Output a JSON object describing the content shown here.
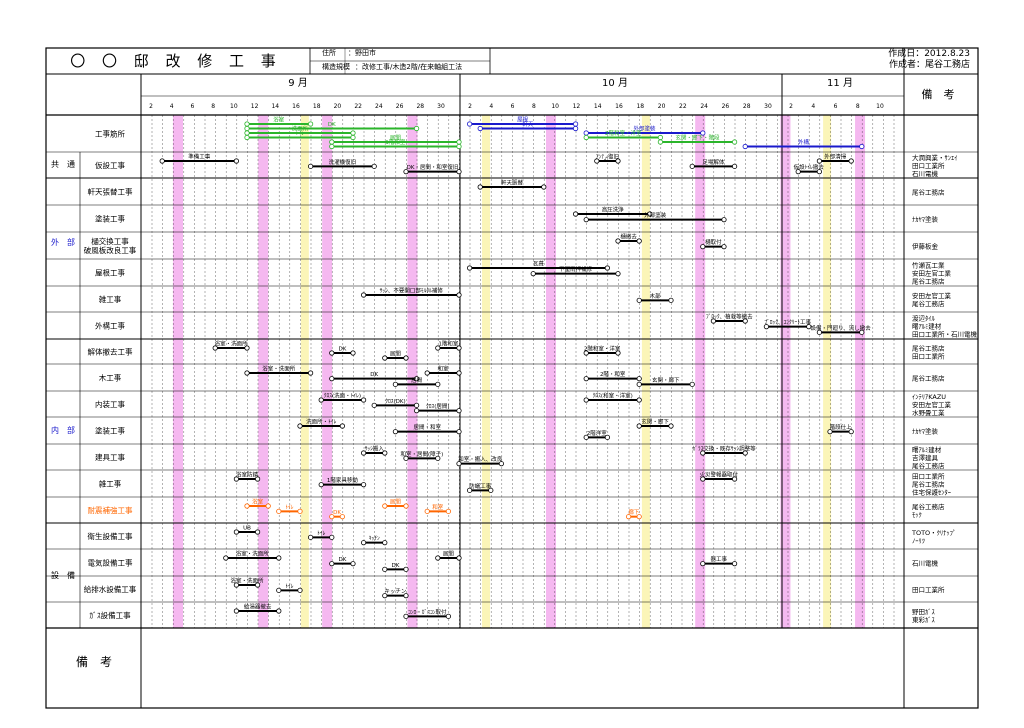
{
  "header": {
    "title": "〇 〇 邸 改 修 工 事",
    "address_label": "住所",
    "address_value": "：野田市",
    "structure_label": "構造規模",
    "structure_value": "：改修工事/木造2階/在来軸組工法",
    "created_date": "作成日：2012.8.23",
    "author": "作成者：尾谷工務店"
  },
  "months": [
    {
      "label": "9 月"
    },
    {
      "label": "10 月"
    },
    {
      "label": "11 月"
    }
  ],
  "day_ticks": [
    [
      "2",
      "4",
      "6",
      "8",
      "10",
      "12",
      "14",
      "16",
      "18",
      "20",
      "22",
      "24",
      "26",
      "28",
      "30"
    ],
    [
      "2",
      "4",
      "6",
      "8",
      "10",
      "12",
      "14",
      "16",
      "18",
      "20",
      "22",
      "24",
      "26",
      "28",
      "30"
    ],
    [
      "2",
      "4",
      "6",
      "8",
      "10"
    ]
  ],
  "remarks_header": "備　考",
  "group_labels": {
    "common": "共　通",
    "exterior": "外　部",
    "interior": "内　部",
    "equipment": "設　備"
  },
  "rows": [
    {
      "label": "工事筋所",
      "contractor": ""
    },
    {
      "label": "仮設工事",
      "contractor": "大潤興業・ｻﾝｴｲ\n田口工業所\n石川電機"
    },
    {
      "label": "軒天張替工事",
      "contractor": "尾谷工務店"
    },
    {
      "label": "塗装工事",
      "contractor": "ﾅｶﾔﾏ塗装"
    },
    {
      "label": "樋交換工事\n破風板改良工事",
      "contractor": "伊藤板金"
    },
    {
      "label": "屋根工事",
      "contractor": "竹瀬瓦工業\n安田左官工業\n尾谷工務店"
    },
    {
      "label": "雑工事",
      "contractor": "安田左官工業\n尾谷工務店"
    },
    {
      "label": "外構工事",
      "contractor": "渡辺ﾀｲﾙ\n曙ｱﾙﾐ建材\n田口工業所・石川電機"
    },
    {
      "label": "解体撤去工事",
      "contractor": "尾谷工務店\n田口工業所"
    },
    {
      "label": "木工事",
      "contractor": "尾谷工務店"
    },
    {
      "label": "内装工事",
      "contractor": "ｲﾝﾃﾘｱKAZU\n安田左官工業\n水野畳工業"
    },
    {
      "label": "塗装工事",
      "contractor": "ﾅｶﾔﾏ塗装"
    },
    {
      "label": "建具工事",
      "contractor": "曙ｱﾙﾐ建材\n吉澤建具\n尾谷工務店"
    },
    {
      "label": "雑工事",
      "contractor": "田口工業所\n尾谷工務店\n住宅保護ｾﾝﾀｰ"
    },
    {
      "label": "耐震補強工事",
      "contractor": "尾谷工務店\nﾓｯｸ"
    },
    {
      "label": "衛生設備工事",
      "contractor": "TOTO・ｸﾘﾅｯﾌﾟ\nﾉｰﾘﾂ"
    },
    {
      "label": "電気設備工事",
      "contractor": "石川電機"
    },
    {
      "label": "給排水設備工事",
      "contractor": "田口工業所"
    },
    {
      "label": "ｶﾞｽ設備工事",
      "contractor": "野田ｶﾞｽ\n東彩ｶﾞｽ"
    }
  ],
  "bottom_remarks_label": "備　考",
  "tasks": [
    {
      "row": 0,
      "start": 10,
      "end": 16,
      "color": "#2bb52b",
      "label": "浴室"
    },
    {
      "row": 0,
      "start": 10,
      "end": 26,
      "color": "#2bb52b",
      "label": "DK"
    },
    {
      "row": 0,
      "start": 10,
      "end": 20,
      "color": "#2bb52b",
      "label": "洗面所"
    },
    {
      "row": 0,
      "start": 10,
      "end": 20,
      "color": "#2bb52b",
      "label": "ﾄｲﾚ"
    },
    {
      "row": 0,
      "start": 18,
      "end": 30,
      "color": "#2bb52b",
      "label": "居間"
    },
    {
      "row": 0,
      "start": 18,
      "end": 30,
      "color": "#2bb52b",
      "label": "1階和室"
    },
    {
      "row": 0,
      "start": 31,
      "end": 41,
      "color": "#1a1acc",
      "label": "屋根"
    },
    {
      "row": 0,
      "start": 32,
      "end": 41,
      "color": "#1a1acc",
      "label": "軒天"
    },
    {
      "row": 0,
      "start": 42,
      "end": 53,
      "color": "#1a1acc",
      "label": "外部塗装"
    },
    {
      "row": 0,
      "start": 42,
      "end": 49,
      "color": "#2bb52b",
      "label": "2階和室・洋室"
    },
    {
      "row": 0,
      "start": 49,
      "end": 56,
      "color": "#2bb52b",
      "label": "玄関・廊下・階段"
    },
    {
      "row": 0,
      "start": 57,
      "end": 68,
      "color": "#1a1acc",
      "label": "外構"
    },
    {
      "row": 1,
      "start": 2,
      "end": 9,
      "color": "#000",
      "label": "準備工事"
    },
    {
      "row": 1,
      "start": 16,
      "end": 22,
      "color": "#000",
      "label": "洗濯機復旧"
    },
    {
      "row": 1,
      "start": 25,
      "end": 30,
      "color": "#000",
      "label": "DK・居間・和室復旧"
    },
    {
      "row": 1,
      "start": 43,
      "end": 45,
      "color": "#000",
      "label": "ｱﾝﾃﲊ復旧"
    },
    {
      "row": 1,
      "start": 52,
      "end": 56,
      "color": "#000",
      "label": "足場解体"
    },
    {
      "row": 1,
      "start": 62,
      "end": 64,
      "color": "#000",
      "label": "仮設ﾄｲﾚ撤去"
    },
    {
      "row": 1,
      "start": 64,
      "end": 67,
      "color": "#000",
      "label": "外部清掃"
    },
    {
      "row": 2,
      "start": 32,
      "end": 38,
      "color": "#000",
      "label": "軒天張替"
    },
    {
      "row": 3,
      "start": 41,
      "end": 48,
      "color": "#000",
      "label": "高圧洗浄"
    },
    {
      "row": 3,
      "start": 42,
      "end": 55,
      "color": "#000",
      "label": "外部塗装"
    },
    {
      "row": 4,
      "start": 45,
      "end": 47,
      "color": "#000",
      "label": "樋撤去"
    },
    {
      "row": 4,
      "start": 53,
      "end": 55,
      "color": "#000",
      "label": "樋取付"
    },
    {
      "row": 5,
      "start": 31,
      "end": 44,
      "color": "#000",
      "label": "瓦葺"
    },
    {
      "row": 5,
      "start": 37,
      "end": 45,
      "color": "#000",
      "label": "下屋雨押補修"
    },
    {
      "row": 6,
      "start": 21,
      "end": 30,
      "color": "#000",
      "label": "ｻｯｼ、不要開口部ﾓﾙﾀﾙ補修"
    },
    {
      "row": 6,
      "start": 47,
      "end": 50,
      "color": "#000",
      "label": "木部"
    },
    {
      "row": 7,
      "start": 54,
      "end": 57,
      "color": "#000",
      "label": "ﾌﾞﾛｯｸ、植栽等撤去"
    },
    {
      "row": 7,
      "start": 59,
      "end": 63,
      "color": "#000",
      "label": "ﾌﾞﾛｯｸ、ｺﾝｸﾘｰﾄ工事"
    },
    {
      "row": 7,
      "start": 64,
      "end": 68,
      "color": "#000",
      "label": "設備・門廻り、流し撤去"
    },
    {
      "row": 8,
      "start": 7,
      "end": 10,
      "color": "#000",
      "label": "浴室・洗面所"
    },
    {
      "row": 8,
      "start": 18,
      "end": 20,
      "color": "#000",
      "label": "DK"
    },
    {
      "row": 8,
      "start": 23,
      "end": 25,
      "color": "#000",
      "label": "居間"
    },
    {
      "row": 8,
      "start": 28,
      "end": 30,
      "color": "#000",
      "label": "1階和室"
    },
    {
      "row": 8,
      "start": 42,
      "end": 45,
      "color": "#000",
      "label": "2階和室・洋室"
    },
    {
      "row": 9,
      "start": 10,
      "end": 16,
      "color": "#000",
      "label": "浴室・洗面所"
    },
    {
      "row": 9,
      "start": 18,
      "end": 26,
      "color": "#000",
      "label": "DK"
    },
    {
      "row": 9,
      "start": 24,
      "end": 28,
      "color": "#000",
      "label": "居間"
    },
    {
      "row": 9,
      "start": 27,
      "end": 30,
      "color": "#000",
      "label": "和室"
    },
    {
      "row": 9,
      "start": 42,
      "end": 47,
      "color": "#000",
      "label": "2階・和室"
    },
    {
      "row": 9,
      "start": 47,
      "end": 52,
      "color": "#000",
      "label": "玄関・廊下"
    },
    {
      "row": 10,
      "start": 17,
      "end": 21,
      "color": "#000",
      "label": "ｸﾛｽ(洗面・ﾄｲﾚ)"
    },
    {
      "row": 10,
      "start": 22,
      "end": 26,
      "color": "#000",
      "label": "ｸﾛｽ(DK)"
    },
    {
      "row": 10,
      "start": 26,
      "end": 30,
      "color": "#000",
      "label": "ｸﾛｽ(居間)"
    },
    {
      "row": 10,
      "start": 42,
      "end": 47,
      "color": "#000",
      "label": "ｸﾛｽ(和室・洋室)"
    },
    {
      "row": 11,
      "start": 15,
      "end": 19,
      "color": "#000",
      "label": "洗面所・ﾄｲﾚ"
    },
    {
      "row": 11,
      "start": 24,
      "end": 30,
      "color": "#000",
      "label": "居間・和室"
    },
    {
      "row": 11,
      "start": 42,
      "end": 44,
      "color": "#000",
      "label": "2階洋室"
    },
    {
      "row": 11,
      "start": 47,
      "end": 50,
      "color": "#000",
      "label": "玄関・廊下"
    },
    {
      "row": 11,
      "start": 65,
      "end": 67,
      "color": "#000",
      "label": "階段仕上"
    },
    {
      "row": 12,
      "start": 21,
      "end": 23,
      "color": "#000",
      "label": "ｻｯｼ搬入"
    },
    {
      "row": 12,
      "start": 25,
      "end": 28,
      "color": "#000",
      "label": "和室・居間(障子)"
    },
    {
      "row": 12,
      "start": 30,
      "end": 34,
      "color": "#000",
      "label": "和室・搬入、改良"
    },
    {
      "row": 12,
      "start": 53,
      "end": 57,
      "color": "#000",
      "label": "ｶﾞﾗｽ交換・既存ｻｯｼ調整等"
    },
    {
      "row": 13,
      "start": 9,
      "end": 11,
      "color": "#000",
      "label": "浴室防錆"
    },
    {
      "row": 13,
      "start": 17,
      "end": 21,
      "color": "#000",
      "label": "1階家具移動"
    },
    {
      "row": 13,
      "start": 31,
      "end": 33,
      "color": "#000",
      "label": "防蟻工事"
    },
    {
      "row": 13,
      "start": 53,
      "end": 56,
      "color": "#000",
      "label": "火災警報器取付"
    },
    {
      "row": 14,
      "start": 10,
      "end": 12,
      "color": "#ff6600",
      "label": "浴室"
    },
    {
      "row": 14,
      "start": 13,
      "end": 15,
      "color": "#ff6600",
      "label": "ﾄｲﾚ"
    },
    {
      "row": 14,
      "start": 18,
      "end": 19,
      "color": "#ff6600",
      "label": "DK"
    },
    {
      "row": 14,
      "start": 23,
      "end": 25,
      "color": "#ff6600",
      "label": "居間"
    },
    {
      "row": 14,
      "start": 27,
      "end": 29,
      "color": "#ff6600",
      "label": "和室"
    },
    {
      "row": 14,
      "start": 46,
      "end": 47,
      "color": "#ff6600",
      "label": "廊下"
    },
    {
      "row": 15,
      "start": 9,
      "end": 11,
      "color": "#000",
      "label": "UB"
    },
    {
      "row": 15,
      "start": 16,
      "end": 18,
      "color": "#000",
      "label": "ﾄｲﾚ"
    },
    {
      "row": 15,
      "start": 21,
      "end": 23,
      "color": "#000",
      "label": "ｷｯﾁﾝ"
    },
    {
      "row": 16,
      "start": 8,
      "end": 13,
      "color": "#000",
      "label": "浴室・洗面所"
    },
    {
      "row": 16,
      "start": 18,
      "end": 20,
      "color": "#000",
      "label": "DK"
    },
    {
      "row": 16,
      "start": 23,
      "end": 25,
      "color": "#000",
      "label": "DK"
    },
    {
      "row": 16,
      "start": 28,
      "end": 30,
      "color": "#000",
      "label": "居間"
    },
    {
      "row": 16,
      "start": 53,
      "end": 56,
      "color": "#000",
      "label": "器工事"
    },
    {
      "row": 17,
      "start": 9,
      "end": 11,
      "color": "#000",
      "label": "浴室・洗面所"
    },
    {
      "row": 17,
      "start": 13,
      "end": 15,
      "color": "#000",
      "label": "ﾄｲﾚ"
    },
    {
      "row": 17,
      "start": 23,
      "end": 25,
      "color": "#000",
      "label": "キッチン"
    },
    {
      "row": 18,
      "start": 9,
      "end": 13,
      "color": "#000",
      "label": "給湯器撤去"
    },
    {
      "row": 18,
      "start": 25,
      "end": 29,
      "color": "#000",
      "label": "ｺﾝﾛ・ｶﾞｽｺﾝ取付"
    }
  ]
}
